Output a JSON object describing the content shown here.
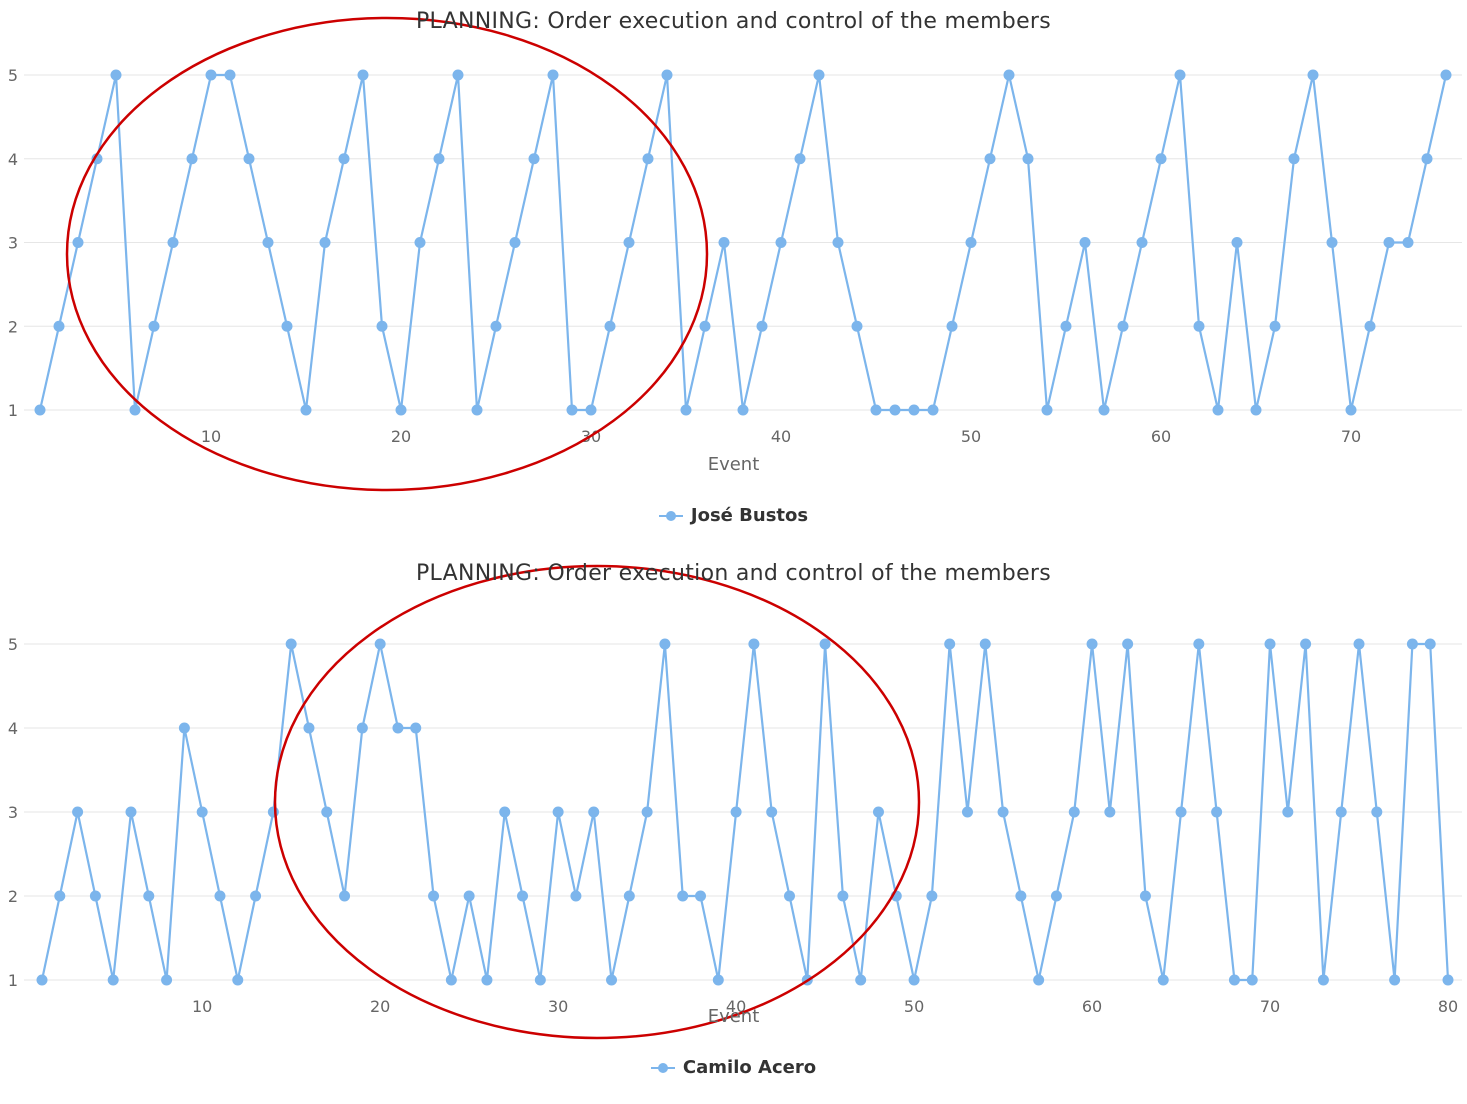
{
  "colors": {
    "series": "#7cb5ec",
    "grid": "#e6e6e6",
    "annotation": "#cc0000"
  },
  "chart_data": [
    {
      "type": "line",
      "title": "PLANNING: Order execution and control of the members",
      "xlabel": "Event",
      "ylabel": "",
      "xlim": [
        1,
        75
      ],
      "ylim": [
        1,
        5
      ],
      "xticks": [
        10,
        20,
        30,
        40,
        50,
        60,
        70
      ],
      "yticks": [
        1,
        2,
        3,
        4,
        5
      ],
      "grid": true,
      "legend_position": "bottom-center",
      "annotation": "red ellipse circling events 2-35",
      "series": [
        {
          "name": "José Bustos",
          "x": [
            1,
            2,
            3,
            4,
            5,
            6,
            7,
            8,
            9,
            10,
            11,
            12,
            13,
            14,
            15,
            16,
            17,
            18,
            19,
            20,
            21,
            22,
            23,
            24,
            25,
            26,
            27,
            28,
            29,
            30,
            31,
            32,
            33,
            34,
            35,
            36,
            37,
            38,
            39,
            40,
            41,
            42,
            43,
            44,
            45,
            46,
            47,
            48,
            49,
            50,
            51,
            52,
            53,
            54,
            55,
            56,
            57,
            58,
            59,
            60,
            61,
            62,
            63,
            64,
            65,
            66,
            67,
            68,
            69,
            70,
            71,
            72,
            73,
            74,
            75
          ],
          "values": [
            1,
            2,
            3,
            4,
            5,
            1,
            2,
            3,
            4,
            5,
            5,
            4,
            3,
            2,
            1,
            3,
            4,
            5,
            2,
            1,
            3,
            4,
            5,
            1,
            2,
            3,
            4,
            5,
            1,
            1,
            2,
            3,
            4,
            5,
            1,
            2,
            3,
            1,
            2,
            3,
            4,
            5,
            3,
            2,
            1,
            1,
            1,
            1,
            2,
            3,
            4,
            5,
            4,
            1,
            2,
            3,
            1,
            2,
            3,
            4,
            5,
            2,
            1,
            3,
            1,
            2,
            4,
            5,
            3,
            1,
            2,
            3,
            3,
            4,
            5
          ]
        }
      ]
    },
    {
      "type": "line",
      "title": "PLANNING: Order execution and control of the members",
      "xlabel": "Event",
      "ylabel": "",
      "xlim": [
        1,
        80
      ],
      "ylim": [
        1,
        5
      ],
      "xticks": [
        10,
        20,
        30,
        40,
        50,
        60,
        70,
        80
      ],
      "yticks": [
        1,
        2,
        3,
        4,
        5
      ],
      "grid": true,
      "legend_position": "bottom-center",
      "annotation": "red ellipse circling events 15-50",
      "series": [
        {
          "name": "Camilo Acero",
          "x": [
            1,
            2,
            3,
            4,
            5,
            6,
            7,
            8,
            9,
            10,
            11,
            12,
            13,
            14,
            15,
            16,
            17,
            18,
            19,
            20,
            21,
            22,
            23,
            24,
            25,
            26,
            27,
            28,
            29,
            30,
            31,
            32,
            33,
            34,
            35,
            36,
            37,
            38,
            39,
            40,
            41,
            42,
            43,
            44,
            45,
            46,
            47,
            48,
            49,
            50,
            51,
            52,
            53,
            54,
            55,
            56,
            57,
            58,
            59,
            60,
            61,
            62,
            63,
            64,
            65,
            66,
            67,
            68,
            69,
            70,
            71,
            72,
            73,
            74,
            75,
            76,
            77,
            78,
            79,
            80
          ],
          "values": [
            1,
            2,
            3,
            2,
            1,
            3,
            2,
            1,
            4,
            3,
            2,
            1,
            2,
            3,
            5,
            4,
            3,
            2,
            4,
            5,
            4,
            4,
            2,
            1,
            2,
            1,
            3,
            2,
            1,
            3,
            2,
            3,
            1,
            2,
            3,
            5,
            2,
            2,
            1,
            3,
            5,
            3,
            2,
            1,
            5,
            2,
            1,
            3,
            2,
            1,
            2,
            5,
            3,
            5,
            3,
            2,
            1,
            2,
            3,
            5,
            3,
            5,
            2,
            1,
            3,
            5,
            3,
            1,
            1,
            5,
            3,
            5,
            1,
            3,
            5,
            3,
            1,
            5,
            5,
            1
          ]
        }
      ]
    }
  ]
}
